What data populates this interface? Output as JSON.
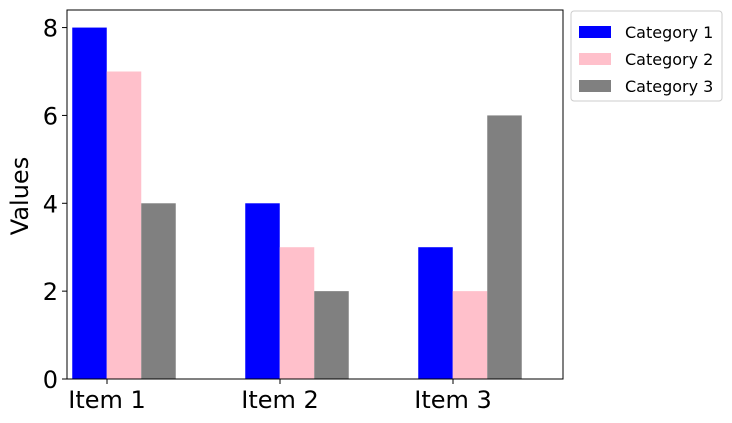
{
  "chart_data": {
    "type": "bar",
    "categories": [
      "Item 1",
      "Item 2",
      "Item 3"
    ],
    "series": [
      {
        "name": "Category 1",
        "values": [
          8,
          4,
          3
        ],
        "color": "#0000ff"
      },
      {
        "name": "Category 2",
        "values": [
          7,
          3,
          2
        ],
        "color": "#ffc0cb"
      },
      {
        "name": "Category 3",
        "values": [
          4,
          2,
          6
        ],
        "color": "#808080"
      }
    ],
    "ylabel": "Values",
    "xlabel": "",
    "ylim": [
      0,
      8.4
    ],
    "yticks": [
      0,
      2,
      4,
      6,
      8
    ],
    "grid": false,
    "legend_position": "upper-right-outside"
  }
}
